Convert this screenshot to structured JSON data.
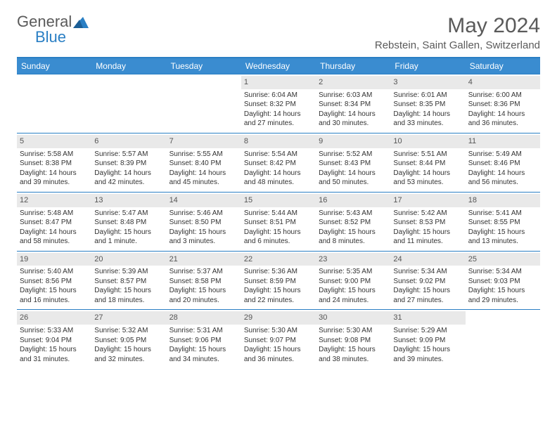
{
  "logo": {
    "general": "General",
    "blue": "Blue"
  },
  "title": "May 2024",
  "location": "Rebstein, Saint Gallen, Switzerland",
  "colors": {
    "header_bg": "#3a8cd0",
    "border": "#2a7fc4",
    "daynum_bg": "#e9e9e9",
    "text": "#333333",
    "title_text": "#5a5a5a"
  },
  "weekdays": [
    "Sunday",
    "Monday",
    "Tuesday",
    "Wednesday",
    "Thursday",
    "Friday",
    "Saturday"
  ],
  "weeks": [
    [
      {
        "n": "",
        "sr": "",
        "ss": "",
        "d1": "",
        "d2": ""
      },
      {
        "n": "",
        "sr": "",
        "ss": "",
        "d1": "",
        "d2": ""
      },
      {
        "n": "",
        "sr": "",
        "ss": "",
        "d1": "",
        "d2": ""
      },
      {
        "n": "1",
        "sr": "Sunrise: 6:04 AM",
        "ss": "Sunset: 8:32 PM",
        "d1": "Daylight: 14 hours",
        "d2": "and 27 minutes."
      },
      {
        "n": "2",
        "sr": "Sunrise: 6:03 AM",
        "ss": "Sunset: 8:34 PM",
        "d1": "Daylight: 14 hours",
        "d2": "and 30 minutes."
      },
      {
        "n": "3",
        "sr": "Sunrise: 6:01 AM",
        "ss": "Sunset: 8:35 PM",
        "d1": "Daylight: 14 hours",
        "d2": "and 33 minutes."
      },
      {
        "n": "4",
        "sr": "Sunrise: 6:00 AM",
        "ss": "Sunset: 8:36 PM",
        "d1": "Daylight: 14 hours",
        "d2": "and 36 minutes."
      }
    ],
    [
      {
        "n": "5",
        "sr": "Sunrise: 5:58 AM",
        "ss": "Sunset: 8:38 PM",
        "d1": "Daylight: 14 hours",
        "d2": "and 39 minutes."
      },
      {
        "n": "6",
        "sr": "Sunrise: 5:57 AM",
        "ss": "Sunset: 8:39 PM",
        "d1": "Daylight: 14 hours",
        "d2": "and 42 minutes."
      },
      {
        "n": "7",
        "sr": "Sunrise: 5:55 AM",
        "ss": "Sunset: 8:40 PM",
        "d1": "Daylight: 14 hours",
        "d2": "and 45 minutes."
      },
      {
        "n": "8",
        "sr": "Sunrise: 5:54 AM",
        "ss": "Sunset: 8:42 PM",
        "d1": "Daylight: 14 hours",
        "d2": "and 48 minutes."
      },
      {
        "n": "9",
        "sr": "Sunrise: 5:52 AM",
        "ss": "Sunset: 8:43 PM",
        "d1": "Daylight: 14 hours",
        "d2": "and 50 minutes."
      },
      {
        "n": "10",
        "sr": "Sunrise: 5:51 AM",
        "ss": "Sunset: 8:44 PM",
        "d1": "Daylight: 14 hours",
        "d2": "and 53 minutes."
      },
      {
        "n": "11",
        "sr": "Sunrise: 5:49 AM",
        "ss": "Sunset: 8:46 PM",
        "d1": "Daylight: 14 hours",
        "d2": "and 56 minutes."
      }
    ],
    [
      {
        "n": "12",
        "sr": "Sunrise: 5:48 AM",
        "ss": "Sunset: 8:47 PM",
        "d1": "Daylight: 14 hours",
        "d2": "and 58 minutes."
      },
      {
        "n": "13",
        "sr": "Sunrise: 5:47 AM",
        "ss": "Sunset: 8:48 PM",
        "d1": "Daylight: 15 hours",
        "d2": "and 1 minute."
      },
      {
        "n": "14",
        "sr": "Sunrise: 5:46 AM",
        "ss": "Sunset: 8:50 PM",
        "d1": "Daylight: 15 hours",
        "d2": "and 3 minutes."
      },
      {
        "n": "15",
        "sr": "Sunrise: 5:44 AM",
        "ss": "Sunset: 8:51 PM",
        "d1": "Daylight: 15 hours",
        "d2": "and 6 minutes."
      },
      {
        "n": "16",
        "sr": "Sunrise: 5:43 AM",
        "ss": "Sunset: 8:52 PM",
        "d1": "Daylight: 15 hours",
        "d2": "and 8 minutes."
      },
      {
        "n": "17",
        "sr": "Sunrise: 5:42 AM",
        "ss": "Sunset: 8:53 PM",
        "d1": "Daylight: 15 hours",
        "d2": "and 11 minutes."
      },
      {
        "n": "18",
        "sr": "Sunrise: 5:41 AM",
        "ss": "Sunset: 8:55 PM",
        "d1": "Daylight: 15 hours",
        "d2": "and 13 minutes."
      }
    ],
    [
      {
        "n": "19",
        "sr": "Sunrise: 5:40 AM",
        "ss": "Sunset: 8:56 PM",
        "d1": "Daylight: 15 hours",
        "d2": "and 16 minutes."
      },
      {
        "n": "20",
        "sr": "Sunrise: 5:39 AM",
        "ss": "Sunset: 8:57 PM",
        "d1": "Daylight: 15 hours",
        "d2": "and 18 minutes."
      },
      {
        "n": "21",
        "sr": "Sunrise: 5:37 AM",
        "ss": "Sunset: 8:58 PM",
        "d1": "Daylight: 15 hours",
        "d2": "and 20 minutes."
      },
      {
        "n": "22",
        "sr": "Sunrise: 5:36 AM",
        "ss": "Sunset: 8:59 PM",
        "d1": "Daylight: 15 hours",
        "d2": "and 22 minutes."
      },
      {
        "n": "23",
        "sr": "Sunrise: 5:35 AM",
        "ss": "Sunset: 9:00 PM",
        "d1": "Daylight: 15 hours",
        "d2": "and 24 minutes."
      },
      {
        "n": "24",
        "sr": "Sunrise: 5:34 AM",
        "ss": "Sunset: 9:02 PM",
        "d1": "Daylight: 15 hours",
        "d2": "and 27 minutes."
      },
      {
        "n": "25",
        "sr": "Sunrise: 5:34 AM",
        "ss": "Sunset: 9:03 PM",
        "d1": "Daylight: 15 hours",
        "d2": "and 29 minutes."
      }
    ],
    [
      {
        "n": "26",
        "sr": "Sunrise: 5:33 AM",
        "ss": "Sunset: 9:04 PM",
        "d1": "Daylight: 15 hours",
        "d2": "and 31 minutes."
      },
      {
        "n": "27",
        "sr": "Sunrise: 5:32 AM",
        "ss": "Sunset: 9:05 PM",
        "d1": "Daylight: 15 hours",
        "d2": "and 32 minutes."
      },
      {
        "n": "28",
        "sr": "Sunrise: 5:31 AM",
        "ss": "Sunset: 9:06 PM",
        "d1": "Daylight: 15 hours",
        "d2": "and 34 minutes."
      },
      {
        "n": "29",
        "sr": "Sunrise: 5:30 AM",
        "ss": "Sunset: 9:07 PM",
        "d1": "Daylight: 15 hours",
        "d2": "and 36 minutes."
      },
      {
        "n": "30",
        "sr": "Sunrise: 5:30 AM",
        "ss": "Sunset: 9:08 PM",
        "d1": "Daylight: 15 hours",
        "d2": "and 38 minutes."
      },
      {
        "n": "31",
        "sr": "Sunrise: 5:29 AM",
        "ss": "Sunset: 9:09 PM",
        "d1": "Daylight: 15 hours",
        "d2": "and 39 minutes."
      },
      {
        "n": "",
        "sr": "",
        "ss": "",
        "d1": "",
        "d2": ""
      }
    ]
  ]
}
